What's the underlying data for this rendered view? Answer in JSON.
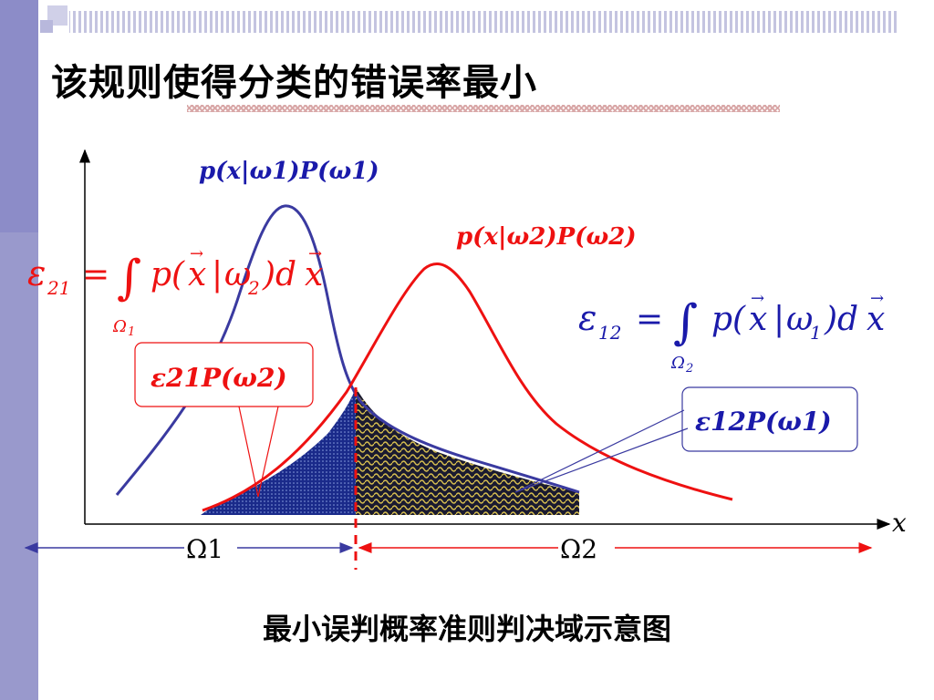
{
  "slide": {
    "title": "该规则使得分类的错误率最小",
    "caption": "最小误判概率准则判决域示意图"
  },
  "colors": {
    "blue": "#3a3aa0",
    "red": "#ee1111",
    "sidebar": "#9999cc"
  },
  "labels": {
    "curve1": "p(x|ω1)P(ω1)",
    "curve2": "p(x|ω2)P(ω2)",
    "eps21_box": "ε21P(ω2)",
    "eps12_box": "ε12P(ω1)",
    "x_axis": "x",
    "region1": "Ω1",
    "region2": "Ω2"
  },
  "formulas": {
    "eps21": {
      "lhs": "ε",
      "lhs_sub": "21",
      "eq": "=",
      "integral": "∫",
      "domain": "Ω",
      "domain_sub": "1",
      "body_pre": "p(",
      "vec": "x",
      "bar": "|",
      "omega": "ω",
      "omega_sub": "2",
      "body_post": ")d",
      "vec2": "x"
    },
    "eps12": {
      "lhs": "ε",
      "lhs_sub": "12",
      "eq": "=",
      "integral": "∫",
      "domain": "Ω",
      "domain_sub": "2",
      "body_pre": "p(",
      "vec": "x",
      "bar": "|",
      "omega": "ω",
      "omega_sub": "1",
      "body_post": ")d",
      "vec2": "x"
    }
  }
}
